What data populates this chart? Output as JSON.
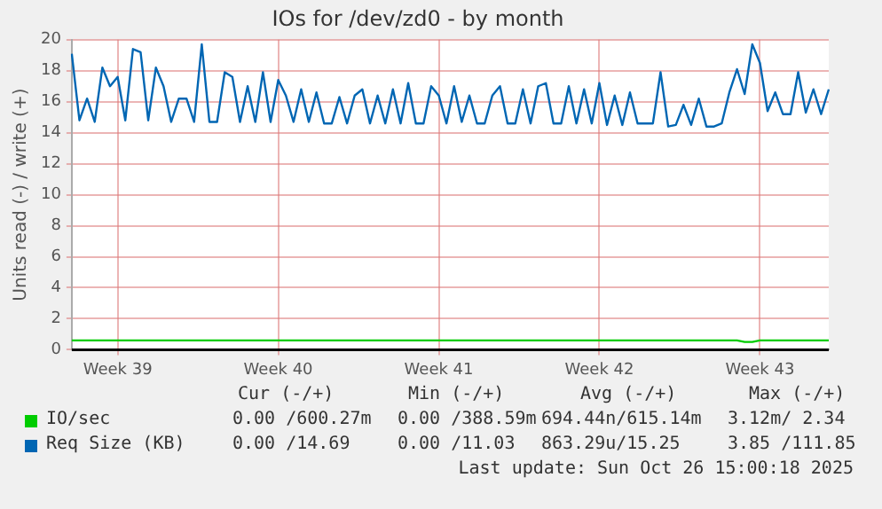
{
  "chart_data": {
    "type": "line",
    "title": "IOs for /dev/zd0 - by month",
    "ylabel": "Units read (-) / write (+)",
    "categories": [
      null,
      null,
      null,
      null,
      null,
      null,
      "Week 39",
      null,
      null,
      null,
      null,
      null,
      null,
      null,
      null,
      null,
      null,
      null,
      null,
      null,
      null,
      null,
      null,
      null,
      null,
      null,
      null,
      "Week 40",
      null,
      null,
      null,
      null,
      null,
      null,
      null,
      null,
      null,
      null,
      null,
      null,
      null,
      null,
      null,
      null,
      null,
      null,
      null,
      null,
      "Week 41",
      null,
      null,
      null,
      null,
      null,
      null,
      null,
      null,
      null,
      null,
      null,
      null,
      null,
      null,
      null,
      null,
      null,
      null,
      null,
      null,
      "Week 42",
      null,
      null,
      null,
      null,
      null,
      null,
      null,
      null,
      null,
      null,
      null,
      null,
      null,
      null,
      null,
      null,
      null,
      null,
      null,
      null,
      "Week 43",
      null,
      null,
      null,
      null,
      null,
      null,
      null,
      null,
      null
    ],
    "ylim": [
      0,
      20
    ],
    "yticks": [
      0,
      2,
      4,
      6,
      8,
      10,
      12,
      14,
      16,
      18,
      20
    ],
    "grid": true,
    "legend": "bottom",
    "marker": "none",
    "line_style": "solid",
    "series": [
      {
        "name": "IO/sec",
        "color": "#00cc00",
        "values": [
          0.6,
          0.6,
          0.6,
          0.6,
          0.6,
          0.6,
          0.6,
          0.6,
          0.6,
          0.6,
          0.6,
          0.6,
          0.6,
          0.6,
          0.6,
          0.6,
          0.6,
          0.6,
          0.6,
          0.6,
          0.6,
          0.6,
          0.6,
          0.6,
          0.6,
          0.6,
          0.6,
          0.6,
          0.6,
          0.6,
          0.6,
          0.6,
          0.6,
          0.6,
          0.6,
          0.6,
          0.6,
          0.6,
          0.6,
          0.6,
          0.6,
          0.6,
          0.6,
          0.6,
          0.6,
          0.6,
          0.6,
          0.6,
          0.6,
          0.6,
          0.6,
          0.6,
          0.6,
          0.6,
          0.6,
          0.6,
          0.6,
          0.6,
          0.6,
          0.6,
          0.6,
          0.6,
          0.6,
          0.6,
          0.6,
          0.6,
          0.6,
          0.6,
          0.6,
          0.6,
          0.6,
          0.6,
          0.6,
          0.6,
          0.6,
          0.6,
          0.6,
          0.6,
          0.6,
          0.6,
          0.6,
          0.6,
          0.6,
          0.6,
          0.6,
          0.6,
          0.6,
          0.6,
          0.5,
          0.5,
          0.6,
          0.6,
          0.6,
          0.6,
          0.6,
          0.6,
          0.6,
          0.6,
          0.6,
          0.6
        ]
      },
      {
        "name": "Req Size (KB)",
        "color": "#0066b3",
        "values": [
          19.1,
          14.8,
          16.2,
          14.7,
          18.2,
          17.0,
          17.6,
          14.8,
          19.4,
          19.2,
          14.8,
          18.2,
          17.0,
          14.7,
          16.2,
          16.2,
          14.7,
          19.7,
          14.7,
          14.7,
          17.9,
          17.6,
          14.7,
          17.0,
          14.7,
          17.9,
          14.7,
          17.4,
          16.4,
          14.7,
          16.8,
          14.7,
          16.6,
          14.6,
          14.6,
          16.3,
          14.6,
          16.4,
          16.8,
          14.6,
          16.4,
          14.6,
          16.8,
          14.6,
          17.2,
          14.6,
          14.6,
          17.0,
          16.4,
          14.6,
          17.0,
          14.7,
          16.4,
          14.6,
          14.6,
          16.4,
          17.0,
          14.6,
          14.6,
          16.8,
          14.6,
          17.0,
          17.2,
          14.6,
          14.6,
          17.0,
          14.6,
          16.8,
          14.6,
          17.2,
          14.5,
          16.4,
          14.5,
          16.6,
          14.6,
          14.6,
          14.6,
          17.9,
          14.4,
          14.5,
          15.8,
          14.5,
          16.2,
          14.4,
          14.4,
          14.6,
          16.6,
          18.1,
          16.5,
          19.7,
          18.5,
          15.4,
          16.6,
          15.2,
          15.2,
          17.9,
          15.3,
          16.8,
          15.2,
          16.8
        ]
      }
    ],
    "annotations": [
      "Cur (-/+)",
      "Min (-/+)",
      "Avg (-/+)",
      "Max (-/+)",
      "0.00 /600.27m",
      "0.00 /388.59m",
      "694.44n/615.14m",
      "3.12m/ 2.34",
      "0.00 /14.69",
      "0.00 /11.03",
      "863.29u/15.25",
      "3.85 /111.85",
      "Last update: Sun Oct 26 15:00:18 2025"
    ]
  }
}
